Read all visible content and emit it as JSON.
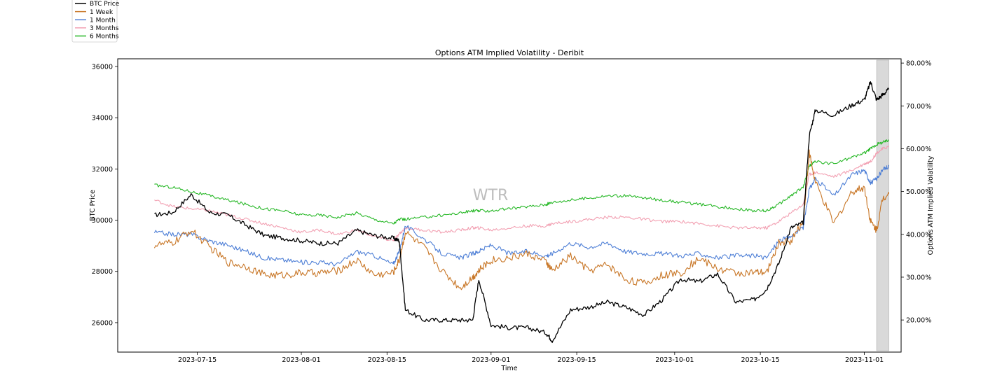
{
  "chart_data": {
    "type": "line",
    "title": "Options ATM Implied Volatility - Deribit",
    "xlabel": "Time",
    "ylabel": "BTC Price",
    "y2label": "Options ATM Implied Volatility",
    "watermark": "WTR",
    "x": [
      "2023-07-08",
      "2023-07-11",
      "2023-07-14",
      "2023-07-17",
      "2023-07-20",
      "2023-07-23",
      "2023-07-26",
      "2023-07-29",
      "2023-08-01",
      "2023-08-04",
      "2023-08-07",
      "2023-08-10",
      "2023-08-13",
      "2023-08-16",
      "2023-08-17",
      "2023-08-18",
      "2023-08-21",
      "2023-08-24",
      "2023-08-27",
      "2023-08-29",
      "2023-08-30",
      "2023-09-01",
      "2023-09-04",
      "2023-09-07",
      "2023-09-10",
      "2023-09-11",
      "2023-09-14",
      "2023-09-17",
      "2023-09-20",
      "2023-09-23",
      "2023-09-26",
      "2023-09-29",
      "2023-10-02",
      "2023-10-05",
      "2023-10-08",
      "2023-10-11",
      "2023-10-14",
      "2023-10-16",
      "2023-10-18",
      "2023-10-20",
      "2023-10-22",
      "2023-10-23",
      "2023-10-24",
      "2023-10-27",
      "2023-10-30",
      "2023-11-01",
      "2023-11-02",
      "2023-11-03",
      "2023-11-04",
      "2023-11-05"
    ],
    "xticks": [
      "2023-07-15",
      "2023-08-01",
      "2023-08-15",
      "2023-09-01",
      "2023-09-15",
      "2023-10-01",
      "2023-10-15",
      "2023-11-01"
    ],
    "ylim": [
      24850,
      36300
    ],
    "yticks": [
      26000,
      28000,
      30000,
      32000,
      34000,
      36000
    ],
    "y2lim": [
      12.5,
      81.0
    ],
    "y2ticks": [
      "20.00%",
      "30.00%",
      "40.00%",
      "50.00%",
      "60.00%",
      "70.00%",
      "80.00%"
    ],
    "y2tick_values": [
      20,
      30,
      40,
      50,
      60,
      70,
      80
    ],
    "xlim": [
      "2023-07-02",
      "2023-11-07"
    ],
    "shaded_region": [
      "2023-11-03",
      "2023-11-05"
    ],
    "legend_position": "top-left (outside plot)",
    "series": [
      {
        "name": "BTC Price",
        "axis": "left",
        "color": "#000000",
        "values": [
          30200,
          30300,
          31000,
          30300,
          30200,
          29800,
          29400,
          29300,
          29200,
          29100,
          29100,
          29600,
          29400,
          29300,
          29200,
          26500,
          26100,
          26100,
          26100,
          26100,
          27700,
          25900,
          25800,
          25800,
          25600,
          25300,
          26500,
          26600,
          26800,
          26600,
          26300,
          26900,
          27700,
          27600,
          27900,
          26800,
          26900,
          27300,
          28300,
          29700,
          29900,
          33300,
          34300,
          34100,
          34500,
          34700,
          35400,
          34700,
          34900,
          35100
        ]
      },
      {
        "name": "1 Week",
        "axis": "right",
        "color": "#c87626",
        "values": [
          37.5,
          38.0,
          41.0,
          37.0,
          33.5,
          32.5,
          30.5,
          30.5,
          31.0,
          31.0,
          31.5,
          34.0,
          30.5,
          31.0,
          34.0,
          40.5,
          37.0,
          31.5,
          27.5,
          30.0,
          31.5,
          34.0,
          34.5,
          35.5,
          33.5,
          31.5,
          35.0,
          31.5,
          33.0,
          29.5,
          28.5,
          30.5,
          31.0,
          34.5,
          32.0,
          31.0,
          31.0,
          31.0,
          38.0,
          38.5,
          43.0,
          59.0,
          52.0,
          42.5,
          50.0,
          51.0,
          43.0,
          41.0,
          48.5,
          49.5
        ]
      },
      {
        "name": "1 Month",
        "axis": "right",
        "color": "#4e7fd6",
        "values": [
          40.5,
          40.0,
          40.0,
          38.5,
          37.5,
          36.0,
          34.5,
          34.0,
          33.5,
          33.5,
          33.0,
          36.0,
          35.0,
          33.0,
          36.0,
          42.0,
          39.0,
          35.5,
          34.5,
          35.5,
          36.0,
          37.5,
          35.5,
          36.0,
          35.0,
          35.5,
          38.0,
          37.0,
          38.0,
          36.0,
          35.5,
          35.5,
          35.0,
          35.5,
          34.5,
          35.0,
          35.0,
          34.5,
          38.5,
          39.5,
          41.5,
          50.5,
          53.0,
          49.0,
          54.0,
          55.0,
          52.0,
          53.0,
          55.0,
          56.0
        ]
      },
      {
        "name": "3 Months",
        "axis": "right",
        "color": "#f2a0b2",
        "values": [
          48.0,
          46.5,
          46.0,
          45.5,
          44.5,
          43.5,
          42.5,
          41.5,
          40.5,
          41.0,
          40.0,
          41.0,
          39.5,
          38.5,
          40.0,
          41.5,
          41.0,
          40.5,
          41.0,
          41.5,
          41.5,
          41.0,
          41.5,
          42.0,
          42.0,
          42.5,
          43.0,
          43.5,
          44.0,
          44.0,
          43.5,
          43.0,
          43.0,
          42.5,
          42.0,
          41.5,
          41.5,
          41.5,
          43.0,
          45.0,
          47.0,
          54.0,
          54.5,
          53.5,
          55.0,
          56.5,
          57.0,
          59.0,
          60.0,
          60.5
        ]
      },
      {
        "name": "6 Months",
        "axis": "right",
        "color": "#27b827",
        "values": [
          51.5,
          51.0,
          50.0,
          49.0,
          48.0,
          47.0,
          46.0,
          45.5,
          44.5,
          44.5,
          44.0,
          45.0,
          43.5,
          42.5,
          43.5,
          43.5,
          44.0,
          44.5,
          45.0,
          45.5,
          45.5,
          45.5,
          46.0,
          46.5,
          47.0,
          47.5,
          48.0,
          48.5,
          49.0,
          49.0,
          48.5,
          48.0,
          47.5,
          47.0,
          46.5,
          46.0,
          45.5,
          45.5,
          47.0,
          49.0,
          51.0,
          56.0,
          57.0,
          56.5,
          58.0,
          59.0,
          60.0,
          61.0,
          61.5,
          62.0
        ]
      }
    ]
  }
}
